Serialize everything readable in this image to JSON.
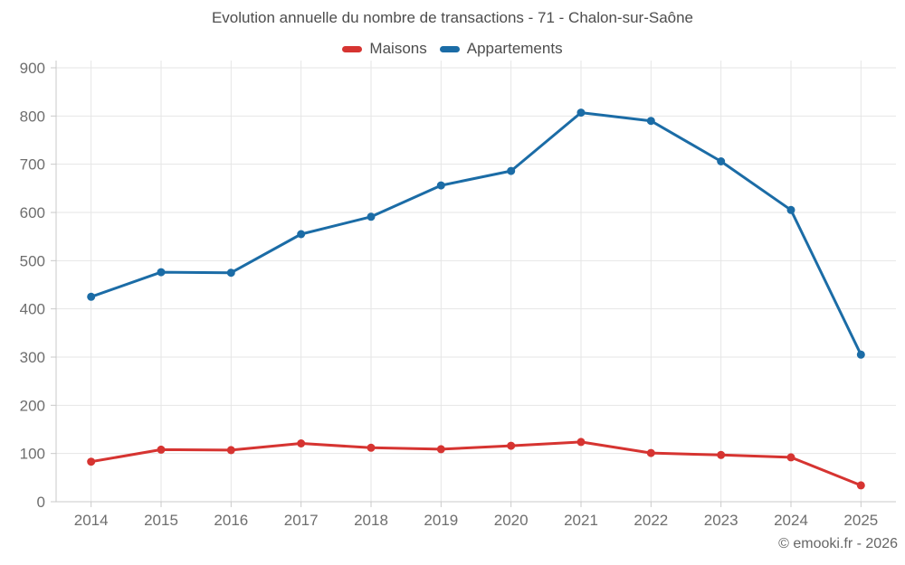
{
  "chart": {
    "title": "Evolution annuelle du nombre de transactions - 71 - Chalon-sur-Saône"
  },
  "footer": {
    "copyright": "© emooki.fr - 2026"
  },
  "colors": {
    "maisons": "#d63431",
    "appartements": "#1b6ca6",
    "gridline": "#e6e6e6",
    "axis_line": "#c9c9c9",
    "axis_text": "#6e6e6e",
    "title_text": "#4d4d4d"
  },
  "chart_data": {
    "type": "line",
    "title": "Evolution annuelle du nombre de transactions - 71 - Chalon-sur-Saône",
    "categories": [
      "2014",
      "2015",
      "2016",
      "2017",
      "2018",
      "2019",
      "2020",
      "2021",
      "2022",
      "2023",
      "2024",
      "2025"
    ],
    "series": [
      {
        "name": "Maisons",
        "color": "#d63431",
        "values": [
          83,
          108,
          107,
          121,
          112,
          109,
          116,
          124,
          101,
          97,
          92,
          34
        ]
      },
      {
        "name": "Appartements",
        "color": "#1b6ca6",
        "values": [
          425,
          476,
          475,
          555,
          591,
          656,
          686,
          807,
          790,
          706,
          605,
          305
        ]
      }
    ],
    "xlabel": "",
    "ylabel": "",
    "ylim": [
      0,
      900
    ],
    "ytick_step": 100,
    "grid": true,
    "legend_position": "top-center",
    "marker": "circle"
  }
}
